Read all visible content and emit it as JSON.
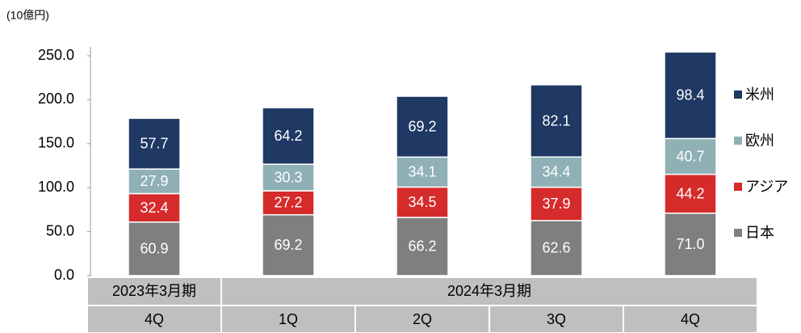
{
  "chart_data": {
    "type": "stacked_bar",
    "unit": "(10億円)",
    "categories": [
      "4Q",
      "1Q",
      "2Q",
      "3Q",
      "4Q"
    ],
    "category_groups": [
      {
        "name": "2023年3月期",
        "count": 1
      },
      {
        "name": "2024年3月期",
        "count": 4
      }
    ],
    "series": [
      {
        "name": "日本",
        "color": "#7f7f7f",
        "values": [
          60.9,
          69.2,
          66.2,
          62.6,
          71.0
        ],
        "value_labels": [
          "60.9",
          "69.2",
          "66.2",
          "62.6",
          "71.0"
        ]
      },
      {
        "name": "アジア",
        "color": "#d62b2b",
        "values": [
          32.4,
          27.2,
          34.5,
          37.9,
          44.2
        ]
      },
      {
        "name": "欧州",
        "color": "#8fb0b5",
        "values": [
          27.9,
          30.3,
          34.1,
          34.4,
          40.7
        ]
      },
      {
        "name": "米州",
        "color": "#1f3864",
        "values": [
          57.7,
          64.2,
          69.2,
          82.1,
          98.4
        ]
      }
    ],
    "ylim": [
      0,
      250
    ],
    "yticks": [
      {
        "value": 0,
        "label": "0.0"
      },
      {
        "value": 50,
        "label": "50.0"
      },
      {
        "value": 100,
        "label": "100.0"
      },
      {
        "value": 150,
        "label": "150.0"
      },
      {
        "value": 200,
        "label": "200.0"
      },
      {
        "value": 250,
        "label": "250.0"
      }
    ],
    "legend": "right"
  }
}
